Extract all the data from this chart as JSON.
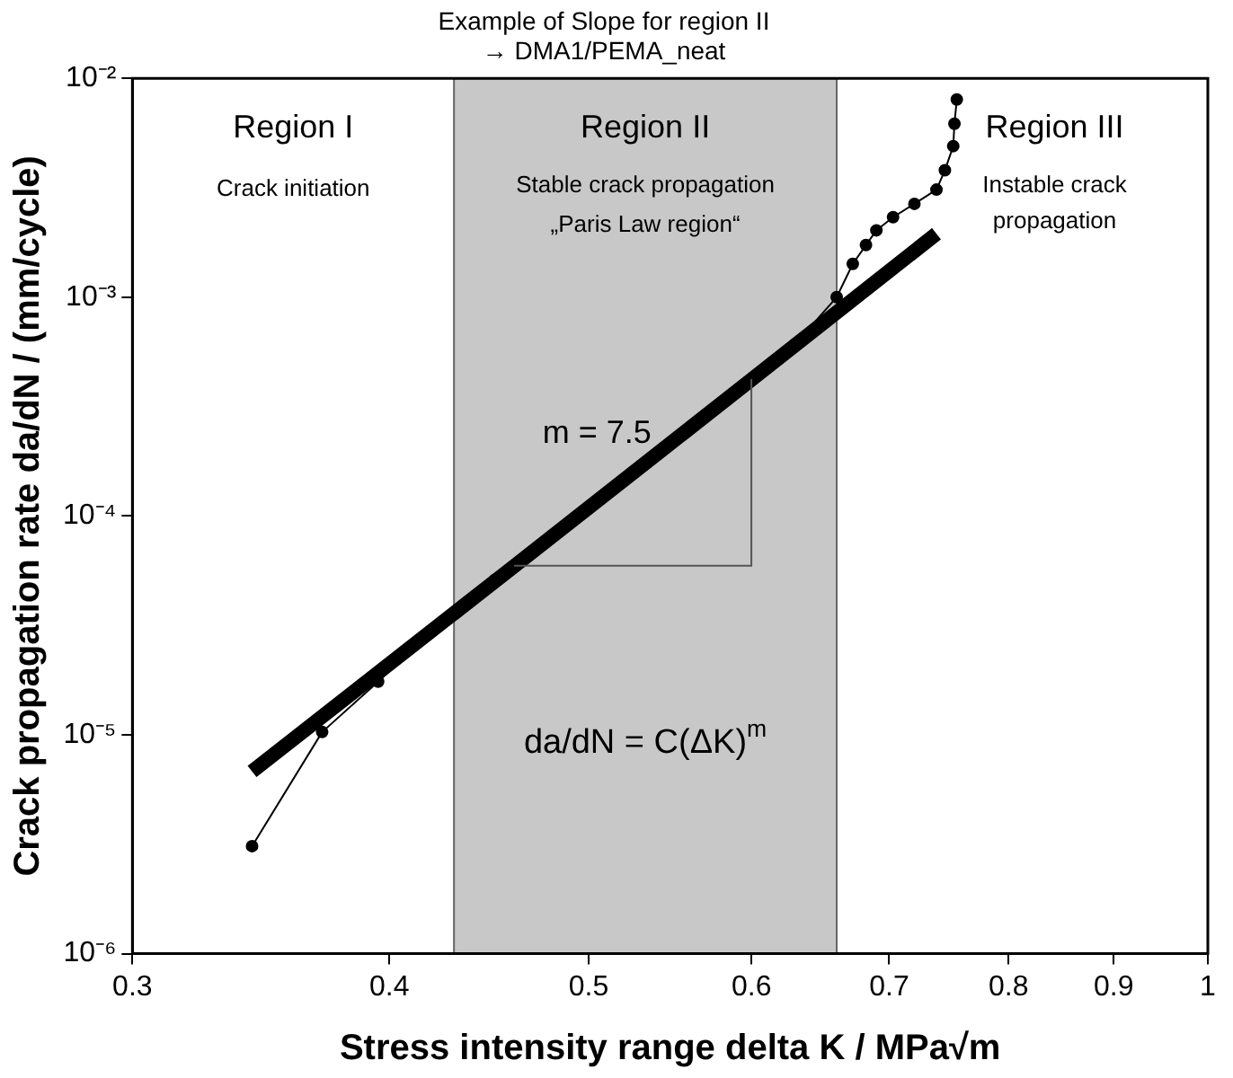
{
  "chart_data": {
    "type": "line",
    "title": "Example of Slope for region II\n→ DMA1/PEMA_neat",
    "xlabel": "Stress intensity range delta K / MPa√m",
    "ylabel": "Crack propagation rate da/dN / (mm/cycle)",
    "log": "xy",
    "xlim": [
      0.3,
      1
    ],
    "xticks": [
      0.3,
      0.4,
      0.5,
      0.6,
      0.7,
      0.8,
      0.9,
      1
    ],
    "ylim": [
      1e-06,
      0.01
    ],
    "yticks": [
      {
        "value": 1e-06,
        "label": "10⁻⁶"
      },
      {
        "value": 1e-05,
        "label": "10⁻⁵"
      },
      {
        "value": 0.0001,
        "label": "10⁻⁴"
      },
      {
        "value": 0.001,
        "label": "10⁻³"
      },
      {
        "value": 0.01,
        "label": "10⁻²"
      }
    ],
    "bands": [
      {
        "axis": "x",
        "from": 0.43,
        "to": 0.66,
        "color": "#c8c8c8"
      }
    ],
    "series": [
      {
        "color": "#000000",
        "marker": "circle",
        "x": [
          0.343,
          0.371,
          0.395,
          0.42,
          0.45,
          0.48,
          0.51,
          0.54,
          0.57,
          0.6,
          0.63,
          0.66,
          0.672,
          0.682,
          0.69,
          0.703,
          0.72,
          0.738,
          0.745,
          0.752,
          0.753,
          0.755
        ],
        "values": [
          3.1e-06,
          1.03e-05,
          1.75e-05,
          3e-05,
          5.1e-05,
          8.1e-05,
          0.000127,
          0.000194,
          0.00029,
          0.00042,
          0.00061,
          0.001,
          0.00142,
          0.00173,
          0.00202,
          0.00232,
          0.00267,
          0.0031,
          0.0038,
          0.0049,
          0.0062,
          0.008
        ]
      },
      {
        "color": "#000000",
        "marker": "none",
        "x": [
          0.343,
          0.46,
          0.6,
          0.738
        ],
        "values": [
          6.8e-06,
          5.9e-05,
          0.00042,
          0.00195
        ]
      }
    ],
    "annotations": [
      "Region I",
      "Crack initiation",
      "Region II",
      "Stable crack propagation",
      "„Paris Law region“",
      "Region III",
      "Instable crack\npropagation",
      "m = 7.5",
      "da/dN = C(ΔK)$^{m}$"
    ]
  }
}
